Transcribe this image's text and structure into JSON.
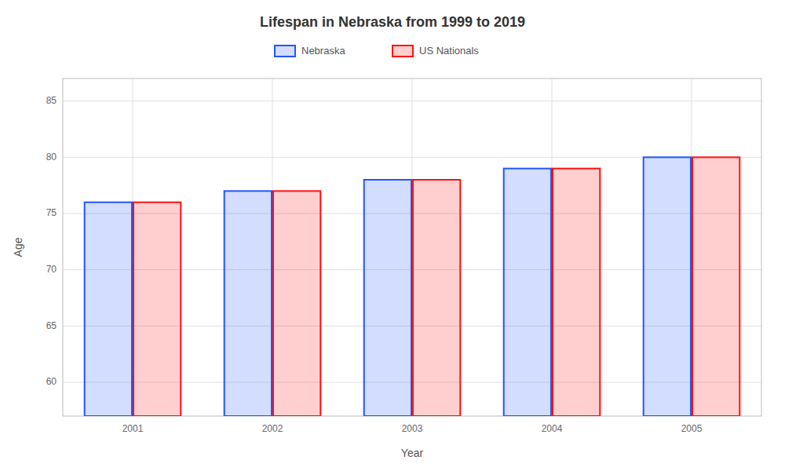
{
  "chart_data": {
    "type": "bar",
    "title": "Lifespan in Nebraska from 1999 to 2019",
    "x_label": "Year",
    "y_label": "Age",
    "categories": [
      "2001",
      "2002",
      "2003",
      "2004",
      "2005"
    ],
    "series": [
      {
        "name": "Nebraska",
        "color": "#2255ff",
        "values": [
          76,
          77,
          78,
          79,
          80
        ]
      },
      {
        "name": "US Nationals",
        "color": "#ff1111",
        "values": [
          76,
          77,
          78,
          79,
          80
        ]
      }
    ],
    "ylim": [
      57,
      87
    ],
    "yticks": [
      60,
      65,
      70,
      75,
      80,
      85
    ],
    "grid": true,
    "legend": "top"
  }
}
